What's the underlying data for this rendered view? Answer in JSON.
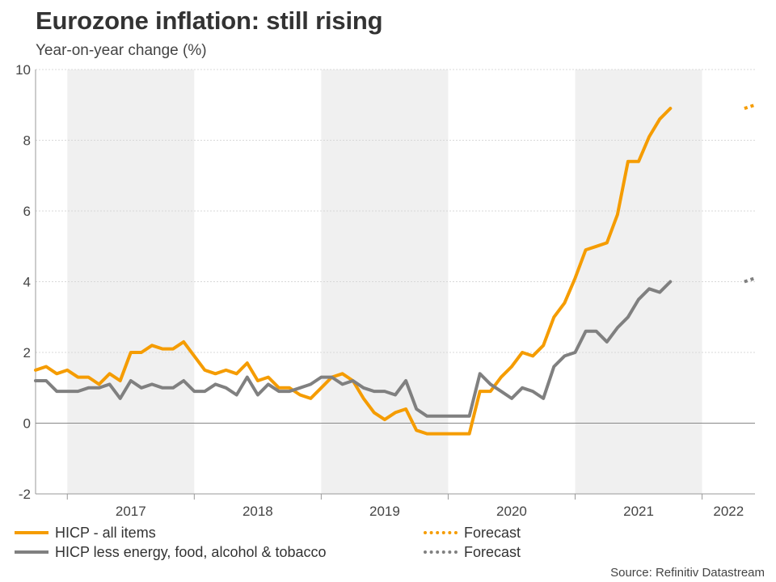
{
  "title": "Eurozone inflation: still rising",
  "subtitle": "Year-on-year change (%)",
  "source": "Source: Refinitiv Datastream",
  "colors": {
    "headline": "#f59c00",
    "core": "#808080",
    "shade": "#f0f0f0",
    "grid": "#d8d8d8",
    "zero": "#888888"
  },
  "legend": [
    {
      "label": "HICP - all items",
      "style": "solid",
      "color": "#f59c00"
    },
    {
      "label": "HICP less energy, food, alcohol & tobacco",
      "style": "solid",
      "color": "#808080"
    },
    {
      "label": "Forecast",
      "style": "dotted",
      "color": "#f59c00"
    },
    {
      "label": "Forecast",
      "style": "dotted",
      "color": "#808080"
    }
  ],
  "chart_data": {
    "type": "line",
    "title": "Eurozone inflation: still rising",
    "ylabel": "Year-on-year change (%)",
    "ylim": [
      -2,
      10
    ],
    "yticks": [
      -2,
      0,
      2,
      4,
      6,
      8,
      10
    ],
    "x_start": "2016-10",
    "x_end": "2022-06",
    "years": [
      "2017",
      "2018",
      "2019",
      "2020",
      "2021",
      "2022"
    ],
    "series": [
      {
        "name": "HICP - all items",
        "start": "2016-10",
        "values": [
          1.5,
          1.6,
          1.4,
          1.5,
          1.3,
          1.3,
          1.1,
          1.4,
          1.2,
          2.0,
          2.0,
          2.2,
          2.1,
          2.1,
          2.3,
          1.9,
          1.5,
          1.4,
          1.5,
          1.4,
          1.7,
          1.2,
          1.3,
          1.0,
          1.0,
          0.8,
          0.7,
          1.0,
          1.3,
          1.4,
          1.2,
          0.7,
          0.3,
          0.1,
          0.3,
          0.4,
          -0.2,
          -0.3,
          -0.3,
          -0.3,
          -0.3,
          -0.3,
          0.9,
          0.9,
          1.3,
          1.6,
          2.0,
          1.9,
          2.2,
          3.0,
          3.4,
          4.1,
          4.9,
          5.0,
          5.1,
          5.9,
          7.4,
          7.4,
          8.1,
          8.6,
          8.9
        ],
        "forecast_start": "2022-05",
        "forecast": [
          8.9,
          9.0
        ]
      },
      {
        "name": "HICP less energy, food, alcohol & tobacco",
        "start": "2016-10",
        "values": [
          1.2,
          1.2,
          0.9,
          0.9,
          0.9,
          1.0,
          1.0,
          1.1,
          0.7,
          1.2,
          1.0,
          1.1,
          1.0,
          1.0,
          1.2,
          0.9,
          0.9,
          1.1,
          1.0,
          0.8,
          1.3,
          0.8,
          1.1,
          0.9,
          0.9,
          1.0,
          1.1,
          1.3,
          1.3,
          1.1,
          1.2,
          1.0,
          0.9,
          0.9,
          0.8,
          1.2,
          0.4,
          0.2,
          0.2,
          0.2,
          0.2,
          0.2,
          1.4,
          1.1,
          0.9,
          0.7,
          1.0,
          0.9,
          0.7,
          1.6,
          1.9,
          2.0,
          2.6,
          2.6,
          2.3,
          2.7,
          3.0,
          3.5,
          3.8,
          3.7,
          4.0
        ],
        "forecast_start": "2022-05",
        "forecast": [
          4.0,
          4.1
        ]
      }
    ],
    "shaded_years": [
      "2017",
      "2019",
      "2021"
    ]
  }
}
